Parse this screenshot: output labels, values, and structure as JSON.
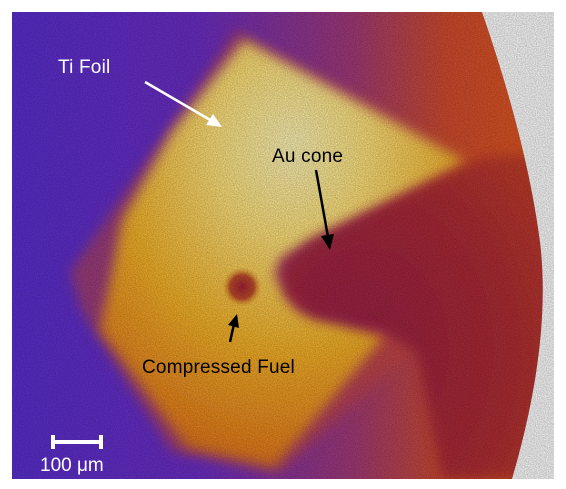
{
  "labels": {
    "ti_foil": "Ti Foil",
    "au_cone": "Au cone",
    "compressed_fuel": "Compressed Fuel"
  },
  "scale_bar": {
    "label": "100 μm"
  },
  "colors": {
    "background_purple": "#6a2bd6",
    "warm_orange": "#c83a2a",
    "foil_yellow": "#f5c53a",
    "foil_bright": "#fff2a8",
    "cone_red": "#a5213f",
    "fuel_dark": "#b2322e"
  }
}
